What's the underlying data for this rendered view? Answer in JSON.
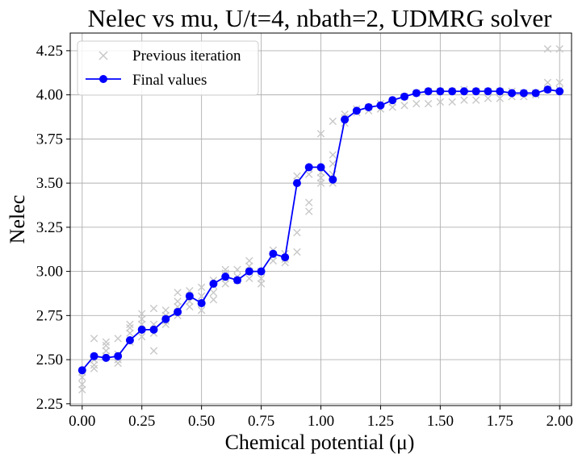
{
  "chart_data": {
    "type": "line",
    "title": "Nelec vs mu, U/t=4, nbath=2, UDMRG solver",
    "xlabel": "Chemical potential (μ)",
    "ylabel": "Nelec",
    "xlim": [
      -0.05,
      2.05
    ],
    "ylim": [
      2.24,
      4.35
    ],
    "x_ticks": [
      0.0,
      0.25,
      0.5,
      0.75,
      1.0,
      1.25,
      1.5,
      1.75,
      2.0
    ],
    "x_tick_labels": [
      "0.00",
      "0.25",
      "0.50",
      "0.75",
      "1.00",
      "1.25",
      "1.50",
      "1.75",
      "2.00"
    ],
    "y_ticks": [
      2.25,
      2.5,
      2.75,
      3.0,
      3.25,
      3.5,
      3.75,
      4.0,
      4.25
    ],
    "y_tick_labels": [
      "2.25",
      "2.50",
      "2.75",
      "3.00",
      "3.25",
      "3.50",
      "3.75",
      "4.00",
      "4.25"
    ],
    "grid": true,
    "legend_position": "top-left",
    "series": [
      {
        "name": "Previous iteration",
        "marker": "x",
        "color": "#c8c8c8",
        "points": [
          [
            0.0,
            2.33
          ],
          [
            0.0,
            2.36
          ],
          [
            0.0,
            2.4
          ],
          [
            0.0,
            2.43
          ],
          [
            0.05,
            2.45
          ],
          [
            0.05,
            2.47
          ],
          [
            0.05,
            2.5
          ],
          [
            0.05,
            2.62
          ],
          [
            0.1,
            2.52
          ],
          [
            0.1,
            2.55
          ],
          [
            0.1,
            2.58
          ],
          [
            0.1,
            2.6
          ],
          [
            0.15,
            2.48
          ],
          [
            0.15,
            2.5
          ],
          [
            0.15,
            2.53
          ],
          [
            0.15,
            2.62
          ],
          [
            0.2,
            2.6
          ],
          [
            0.2,
            2.65
          ],
          [
            0.2,
            2.68
          ],
          [
            0.2,
            2.7
          ],
          [
            0.25,
            2.63
          ],
          [
            0.25,
            2.7
          ],
          [
            0.25,
            2.73
          ],
          [
            0.25,
            2.76
          ],
          [
            0.3,
            2.55
          ],
          [
            0.3,
            2.65
          ],
          [
            0.3,
            2.7
          ],
          [
            0.3,
            2.79
          ],
          [
            0.35,
            2.7
          ],
          [
            0.35,
            2.72
          ],
          [
            0.35,
            2.75
          ],
          [
            0.35,
            2.78
          ],
          [
            0.4,
            2.75
          ],
          [
            0.4,
            2.8
          ],
          [
            0.4,
            2.83
          ],
          [
            0.4,
            2.88
          ],
          [
            0.45,
            2.8
          ],
          [
            0.45,
            2.83
          ],
          [
            0.45,
            2.86
          ],
          [
            0.45,
            2.89
          ],
          [
            0.5,
            2.78
          ],
          [
            0.5,
            2.82
          ],
          [
            0.5,
            2.86
          ],
          [
            0.5,
            2.91
          ],
          [
            0.55,
            2.84
          ],
          [
            0.55,
            2.88
          ],
          [
            0.55,
            2.92
          ],
          [
            0.55,
            2.95
          ],
          [
            0.6,
            2.93
          ],
          [
            0.6,
            2.96
          ],
          [
            0.6,
            2.99
          ],
          [
            0.6,
            3.01
          ],
          [
            0.65,
            2.95
          ],
          [
            0.65,
            2.97
          ],
          [
            0.65,
            3.01
          ],
          [
            0.7,
            2.96
          ],
          [
            0.7,
            3.0
          ],
          [
            0.7,
            3.03
          ],
          [
            0.7,
            3.06
          ],
          [
            0.75,
            2.93
          ],
          [
            0.75,
            2.96
          ],
          [
            0.75,
            3.0
          ],
          [
            0.8,
            3.06
          ],
          [
            0.8,
            3.09
          ],
          [
            0.8,
            3.12
          ],
          [
            0.85,
            3.05
          ],
          [
            0.85,
            3.07
          ],
          [
            0.85,
            3.1
          ],
          [
            0.9,
            3.11
          ],
          [
            0.9,
            3.22
          ],
          [
            0.9,
            3.51
          ],
          [
            0.9,
            3.54
          ],
          [
            0.95,
            3.34
          ],
          [
            0.95,
            3.39
          ],
          [
            0.95,
            3.55
          ],
          [
            0.95,
            3.58
          ],
          [
            1.0,
            3.5
          ],
          [
            1.0,
            3.53
          ],
          [
            1.0,
            3.56
          ],
          [
            1.0,
            3.78
          ],
          [
            1.05,
            3.5
          ],
          [
            1.05,
            3.55
          ],
          [
            1.05,
            3.61
          ],
          [
            1.05,
            3.66
          ],
          [
            1.05,
            3.85
          ],
          [
            1.1,
            3.84
          ],
          [
            1.1,
            3.87
          ],
          [
            1.1,
            3.89
          ],
          [
            1.15,
            3.9
          ],
          [
            1.15,
            3.92
          ],
          [
            1.2,
            3.91
          ],
          [
            1.2,
            3.93
          ],
          [
            1.25,
            3.92
          ],
          [
            1.25,
            3.95
          ],
          [
            1.3,
            3.93
          ],
          [
            1.3,
            3.96
          ],
          [
            1.35,
            3.94
          ],
          [
            1.35,
            3.99
          ],
          [
            1.4,
            3.95
          ],
          [
            1.4,
            4.01
          ],
          [
            1.45,
            3.95
          ],
          [
            1.45,
            4.02
          ],
          [
            1.5,
            3.96
          ],
          [
            1.5,
            4.02
          ],
          [
            1.55,
            3.96
          ],
          [
            1.55,
            4.02
          ],
          [
            1.6,
            3.97
          ],
          [
            1.6,
            4.03
          ],
          [
            1.65,
            3.97
          ],
          [
            1.65,
            4.02
          ],
          [
            1.7,
            3.98
          ],
          [
            1.7,
            4.02
          ],
          [
            1.75,
            3.98
          ],
          [
            1.75,
            4.02
          ],
          [
            1.8,
            3.99
          ],
          [
            1.8,
            4.02
          ],
          [
            1.85,
            3.99
          ],
          [
            1.85,
            4.01
          ],
          [
            1.9,
            4.0
          ],
          [
            1.9,
            4.01
          ],
          [
            1.95,
            4.03
          ],
          [
            1.95,
            4.07
          ],
          [
            1.95,
            4.26
          ],
          [
            2.0,
            4.03
          ],
          [
            2.0,
            4.07
          ],
          [
            2.0,
            4.26
          ]
        ]
      },
      {
        "name": "Final values",
        "marker": "o",
        "color": "#0000ff",
        "x": [
          0.0,
          0.05,
          0.1,
          0.15,
          0.2,
          0.25,
          0.3,
          0.35,
          0.4,
          0.45,
          0.5,
          0.55,
          0.6,
          0.65,
          0.7,
          0.75,
          0.8,
          0.85,
          0.9,
          0.95,
          1.0,
          1.05,
          1.1,
          1.15,
          1.2,
          1.25,
          1.3,
          1.35,
          1.4,
          1.45,
          1.5,
          1.55,
          1.6,
          1.65,
          1.7,
          1.75,
          1.8,
          1.85,
          1.9,
          1.95,
          2.0
        ],
        "y": [
          2.44,
          2.52,
          2.51,
          2.52,
          2.61,
          2.67,
          2.67,
          2.73,
          2.77,
          2.86,
          2.82,
          2.93,
          2.97,
          2.95,
          3.0,
          3.0,
          3.1,
          3.08,
          3.5,
          3.59,
          3.59,
          3.52,
          3.86,
          3.91,
          3.93,
          3.94,
          3.97,
          3.99,
          4.01,
          4.02,
          4.02,
          4.02,
          4.02,
          4.02,
          4.02,
          4.02,
          4.01,
          4.01,
          4.01,
          4.03,
          4.02
        ]
      }
    ]
  }
}
